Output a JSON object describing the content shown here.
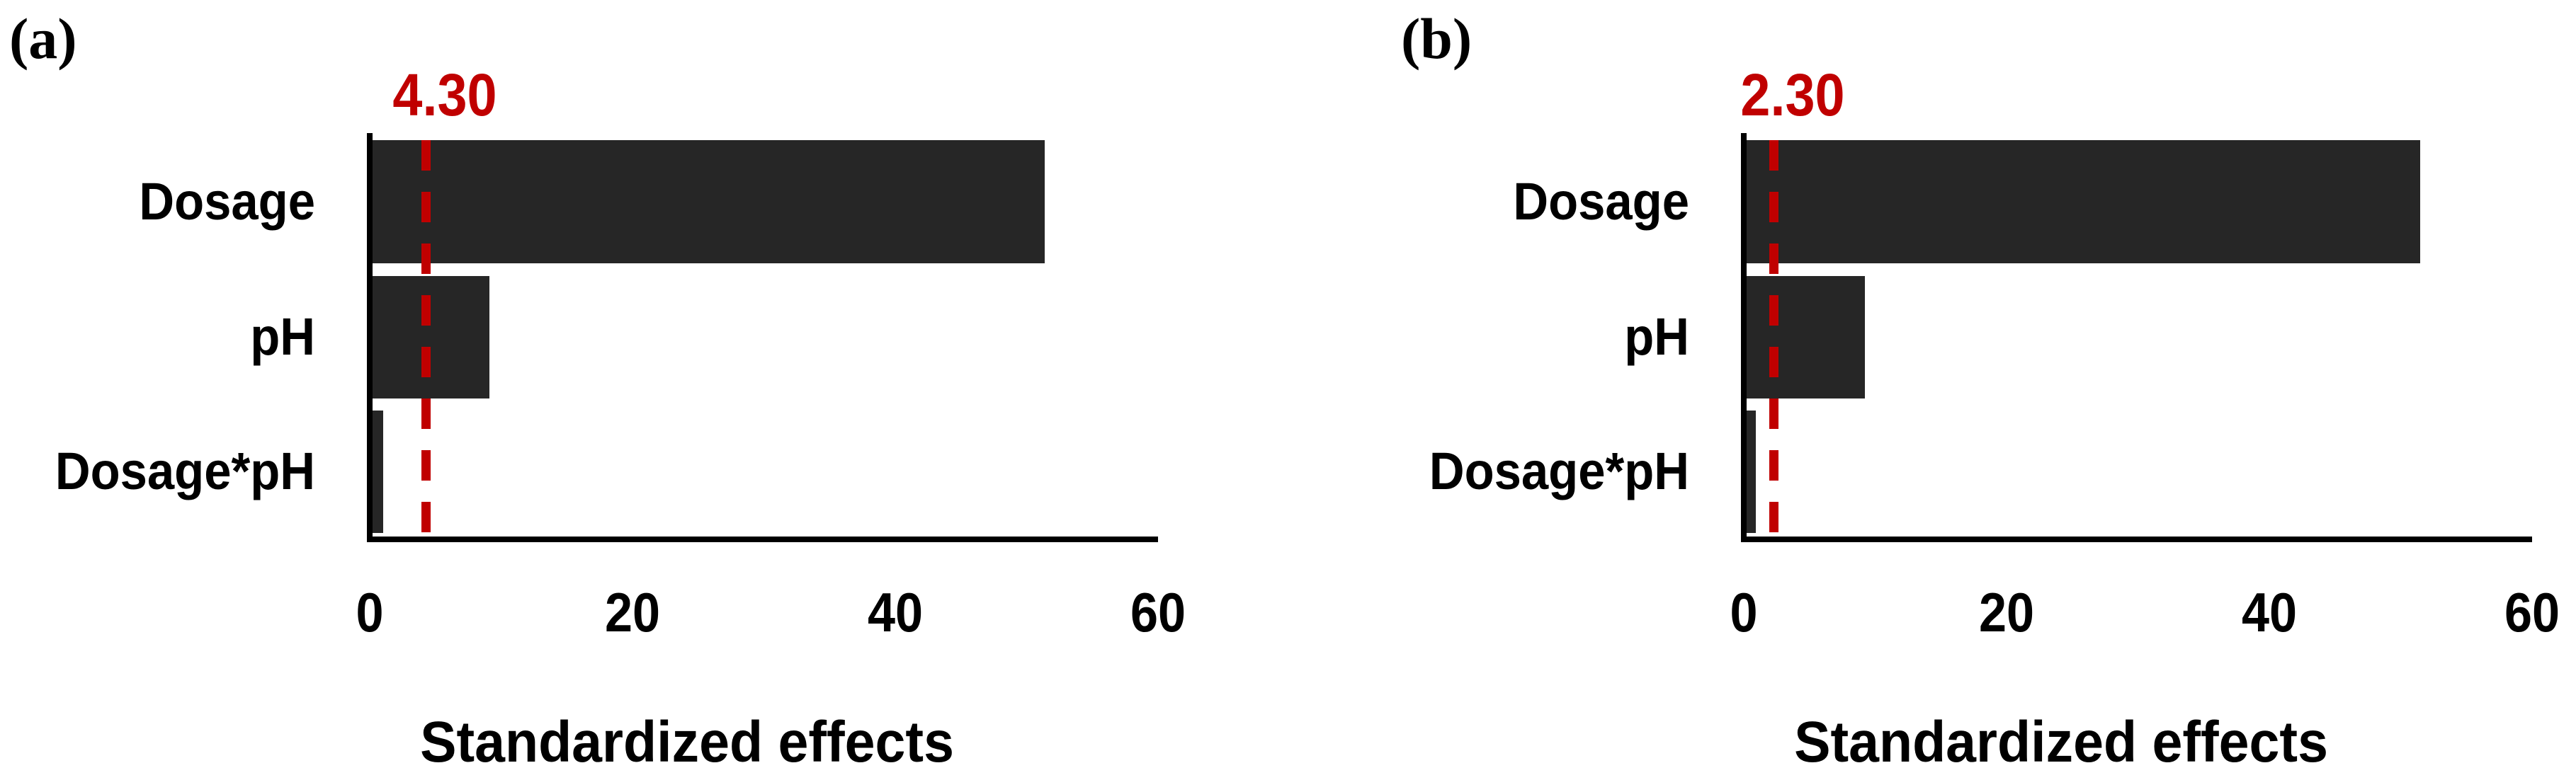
{
  "chart_data": [
    {
      "type": "bar",
      "orientation": "horizontal",
      "panel_label": "(a)",
      "categories": [
        "Dosage",
        "pH",
        "Dosage*pH"
      ],
      "values": [
        51.4,
        9.1,
        1.0
      ],
      "xlabel": "Standardized effects",
      "xlim": [
        0,
        60
      ],
      "x_ticks": [
        0,
        20,
        40,
        60
      ],
      "reference_line": {
        "value": 4.3,
        "label": "4.30",
        "style": "dashed",
        "color": "#c00000"
      },
      "bar_color": "#262626",
      "axis_color": "#000000",
      "grid": false,
      "legend": false
    },
    {
      "type": "bar",
      "orientation": "horizontal",
      "panel_label": "(b)",
      "categories": [
        "Dosage",
        "pH",
        "Dosage*pH"
      ],
      "values": [
        51.5,
        9.2,
        0.9
      ],
      "xlabel": "Standardized effects",
      "xlim": [
        0,
        60
      ],
      "x_ticks": [
        0,
        20,
        40,
        60
      ],
      "reference_line": {
        "value": 2.3,
        "label": "2.30",
        "style": "dashed",
        "color": "#c00000"
      },
      "bar_color": "#262626",
      "axis_color": "#000000",
      "grid": false,
      "legend": false
    }
  ],
  "figure": {
    "background": "#ffffff",
    "text_color": "#000000"
  }
}
